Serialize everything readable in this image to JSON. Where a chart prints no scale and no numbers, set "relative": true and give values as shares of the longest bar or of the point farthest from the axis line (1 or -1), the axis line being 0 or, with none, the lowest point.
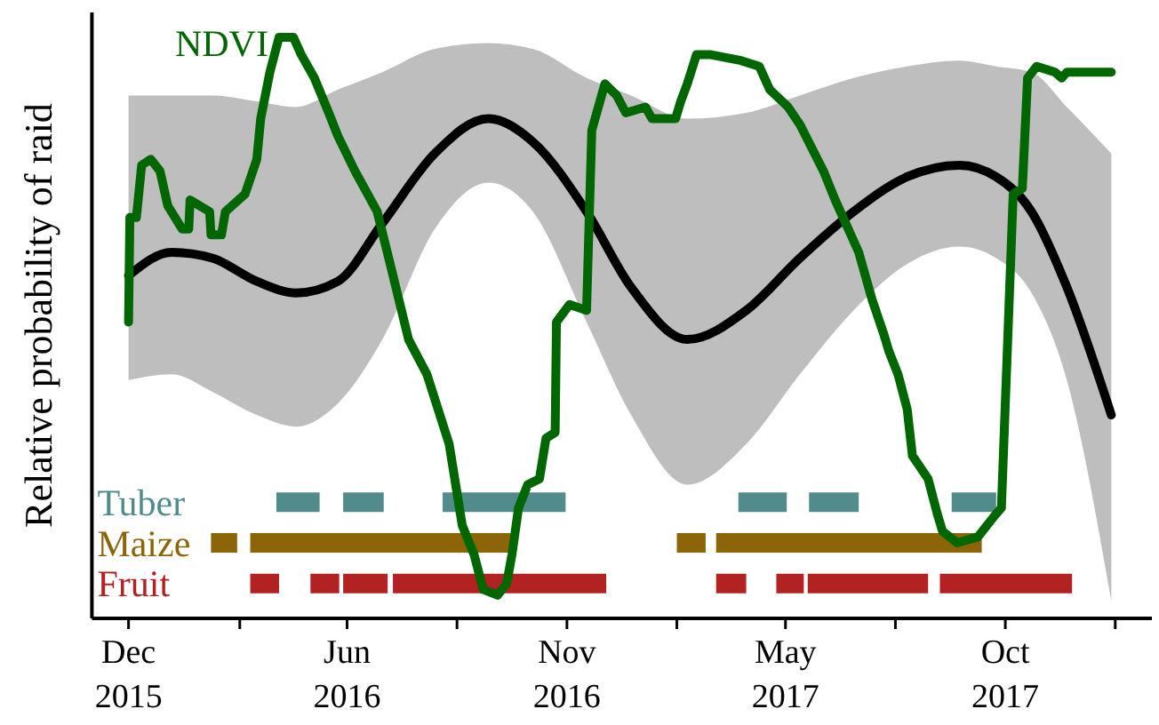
{
  "chart_data": {
    "type": "line",
    "relative": true,
    "ylabel": "Relative probability of raid",
    "xlim": [
      "2015-12-03",
      "2018-02-20"
    ],
    "xticks": [
      {
        "value": "2015-12-31",
        "label": "Dec 2015"
      },
      {
        "value": "2016-03-25",
        "label": null
      },
      {
        "value": "2016-06-15",
        "label": "Jun 2016"
      },
      {
        "value": "2016-09-07",
        "label": null
      },
      {
        "value": "2016-11-30",
        "label": "Nov 2016"
      },
      {
        "value": "2017-02-22",
        "label": null
      },
      {
        "value": "2017-05-16",
        "label": "May 2017"
      },
      {
        "value": "2017-08-08",
        "label": null
      },
      {
        "value": "2017-10-31",
        "label": "Oct 2017"
      },
      {
        "value": "2018-01-23",
        "label": null
      }
    ],
    "series": [
      {
        "color": "#000000",
        "x": [
          "2015-12-31",
          "2016-02-02",
          "2016-03-04",
          "2016-04-07",
          "2016-05-07",
          "2016-06-08",
          "2016-07-12",
          "2016-08-21",
          "2016-10-01",
          "2016-11-04",
          "2016-12-15",
          "2017-01-18",
          "2017-03-02",
          "2017-04-16",
          "2017-05-27",
          "2017-07-07",
          "2017-08-17",
          "2017-09-26",
          "2017-10-24",
          "2017-11-20",
          "2017-12-17",
          "2018-01-20"
        ],
        "values": [
          0.59,
          0.63,
          0.62,
          0.58,
          0.56,
          0.58,
          0.68,
          0.8,
          0.86,
          0.82,
          0.7,
          0.57,
          0.48,
          0.53,
          0.62,
          0.7,
          0.76,
          0.78,
          0.76,
          0.7,
          0.57,
          0.35
        ],
        "upper": [
          0.9,
          0.9,
          0.9,
          0.89,
          0.88,
          0.91,
          0.94,
          0.98,
          0.99,
          0.98,
          0.93,
          0.9,
          0.86,
          0.87,
          0.9,
          0.93,
          0.95,
          0.96,
          0.95,
          0.94,
          0.88,
          0.8
        ],
        "lower": [
          0.41,
          0.42,
          0.39,
          0.35,
          0.33,
          0.37,
          0.48,
          0.67,
          0.75,
          0.7,
          0.51,
          0.35,
          0.23,
          0.3,
          0.42,
          0.53,
          0.61,
          0.64,
          0.62,
          0.56,
          0.41,
          0.03
        ]
      },
      {
        "name": "Tuber",
        "color": "#528b8b",
        "x": [
          "2016-04-22",
          "2016-05-25"
        ],
        "values": [
          0.2,
          0.2
        ]
      },
      {
        "color": "#528b8b",
        "x": [
          "2016-06-12",
          "2016-07-13"
        ],
        "values": [
          0.2,
          0.2
        ]
      },
      {
        "color": "#528b8b",
        "x": [
          "2016-08-27",
          "2016-11-29"
        ],
        "values": [
          0.2,
          0.2
        ]
      },
      {
        "color": "#528b8b",
        "x": [
          "2017-04-10",
          "2017-05-17"
        ],
        "values": [
          0.2,
          0.2
        ]
      },
      {
        "color": "#528b8b",
        "x": [
          "2017-06-03",
          "2017-07-11"
        ],
        "values": [
          0.2,
          0.2
        ]
      },
      {
        "color": "#528b8b",
        "x": [
          "2017-09-20",
          "2017-10-24"
        ],
        "values": [
          0.2,
          0.2
        ]
      },
      {
        "name": "Maize",
        "color": "#8b6508",
        "x": [
          "2016-03-03",
          "2016-03-23"
        ],
        "values": [
          0.13,
          0.13
        ]
      },
      {
        "color": "#8b6508",
        "x": [
          "2016-04-02",
          "2016-10-18"
        ],
        "values": [
          0.13,
          0.13
        ]
      },
      {
        "color": "#8b6508",
        "x": [
          "2017-02-22",
          "2017-03-16"
        ],
        "values": [
          0.13,
          0.13
        ]
      },
      {
        "color": "#8b6508",
        "x": [
          "2017-03-24",
          "2017-10-13"
        ],
        "values": [
          0.13,
          0.13
        ]
      },
      {
        "name": "Fruit",
        "color": "#b22222",
        "x": [
          "2016-04-02",
          "2016-04-24"
        ],
        "values": [
          0.06,
          0.06
        ]
      },
      {
        "color": "#b22222",
        "x": [
          "2016-05-18",
          "2016-06-09"
        ],
        "values": [
          0.06,
          0.06
        ]
      },
      {
        "color": "#b22222",
        "x": [
          "2016-06-12",
          "2016-07-16"
        ],
        "values": [
          0.06,
          0.06
        ]
      },
      {
        "color": "#b22222",
        "x": [
          "2016-07-20",
          "2016-12-30"
        ],
        "values": [
          0.06,
          0.06
        ]
      },
      {
        "color": "#b22222",
        "x": [
          "2017-03-24",
          "2017-04-16"
        ],
        "values": [
          0.06,
          0.06
        ]
      },
      {
        "color": "#b22222",
        "x": [
          "2017-05-09",
          "2017-05-30"
        ],
        "values": [
          0.06,
          0.06
        ]
      },
      {
        "color": "#b22222",
        "x": [
          "2017-06-02",
          "2017-09-02"
        ],
        "values": [
          0.06,
          0.06
        ]
      },
      {
        "color": "#b22222",
        "x": [
          "2017-09-11",
          "2017-12-21"
        ],
        "values": [
          0.06,
          0.06
        ]
      },
      {
        "name": "NDVI",
        "color": "#006600",
        "x": [
          "2015-12-31",
          "2016-01-01",
          "2016-01-06",
          "2016-01-10",
          "2016-01-17",
          "2016-01-24",
          "2016-01-30",
          "2016-02-10",
          "2016-02-15",
          "2016-02-16",
          "2016-03-02",
          "2016-03-03",
          "2016-03-11",
          "2016-03-14",
          "2016-03-29",
          "2016-04-07",
          "2016-04-10",
          "2016-04-17",
          "2016-04-24",
          "2016-05-05",
          "2016-05-11",
          "2016-05-21",
          "2016-06-01",
          "2016-06-08",
          "2016-06-21",
          "2016-07-08",
          "2016-07-19",
          "2016-08-01",
          "2016-08-15",
          "2016-09-01",
          "2016-09-11",
          "2016-09-20",
          "2016-09-27",
          "2016-10-08",
          "2016-10-15",
          "2016-10-19",
          "2016-10-24",
          "2016-10-31",
          "2016-11-09",
          "2016-11-14",
          "2016-11-21",
          "2016-11-22",
          "2016-12-02",
          "2016-12-15",
          "2016-12-19",
          "2016-12-29",
          "2017-01-07",
          "2017-01-14",
          "2017-01-29",
          "2017-02-03",
          "2017-02-21",
          "2017-02-25",
          "2017-03-02",
          "2017-03-09",
          "2017-03-20",
          "2017-04-12",
          "2017-04-26",
          "2017-05-04",
          "2017-05-18",
          "2017-05-27",
          "2017-06-05",
          "2017-06-14",
          "2017-06-23",
          "2017-07-03",
          "2017-07-11",
          "2017-07-21",
          "2017-07-30",
          "2017-08-03",
          "2017-08-10",
          "2017-08-17",
          "2017-08-21",
          "2017-09-02",
          "2017-09-09",
          "2017-09-13",
          "2017-09-24",
          "2017-10-10",
          "2017-10-24",
          "2017-10-28",
          "2017-11-06",
          "2017-11-13",
          "2017-11-17",
          "2017-11-24",
          "2017-12-08",
          "2017-12-13",
          "2017-12-17",
          "2018-01-20"
        ],
        "values": [
          0.51,
          0.69,
          0.69,
          0.78,
          0.79,
          0.77,
          0.71,
          0.67,
          0.67,
          0.72,
          0.7,
          0.66,
          0.66,
          0.7,
          0.73,
          0.79,
          0.86,
          0.94,
          1.0,
          1.0,
          0.97,
          0.93,
          0.87,
          0.83,
          0.77,
          0.7,
          0.6,
          0.48,
          0.42,
          0.3,
          0.16,
          0.11,
          0.05,
          0.04,
          0.06,
          0.11,
          0.19,
          0.23,
          0.24,
          0.31,
          0.32,
          0.51,
          0.54,
          0.53,
          0.84,
          0.92,
          0.9,
          0.87,
          0.88,
          0.86,
          0.86,
          0.89,
          0.92,
          0.97,
          0.97,
          0.96,
          0.95,
          0.91,
          0.88,
          0.85,
          0.81,
          0.77,
          0.72,
          0.67,
          0.63,
          0.55,
          0.49,
          0.46,
          0.42,
          0.36,
          0.28,
          0.24,
          0.18,
          0.15,
          0.13,
          0.14,
          0.18,
          0.19,
          0.73,
          0.74,
          0.93,
          0.95,
          0.94,
          0.93,
          0.94,
          0.94
        ]
      }
    ]
  }
}
